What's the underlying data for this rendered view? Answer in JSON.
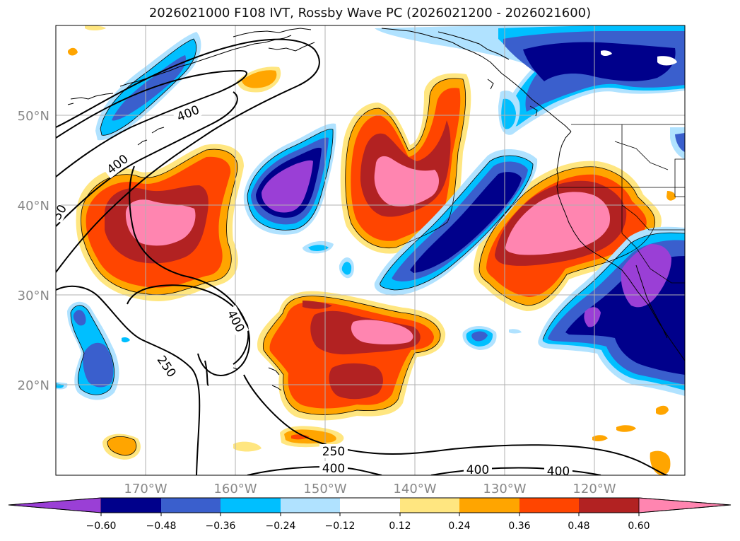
{
  "title": "2026021000 F108 IVT, Rossby Wave PC (2026021200 - 2026021600)",
  "lon_ticks": [
    "170°W",
    "160°W",
    "150°W",
    "140°W",
    "130°W",
    "120°W"
  ],
  "lat_ticks": [
    "50°N",
    "40°N",
    "30°N",
    "20°N"
  ],
  "colorbar": {
    "labels": [
      "−0.60",
      "−0.48",
      "−0.36",
      "−0.24",
      "−0.12",
      "0.12",
      "0.24",
      "0.36",
      "0.48",
      "0.60"
    ],
    "colors": [
      "#9a3fd6",
      "#00008b",
      "#3a5fcd",
      "#00bfff",
      "#b0e2ff",
      "#ffffff",
      "#ffe680",
      "#ffa500",
      "#ff4500",
      "#b22222",
      "#ff85b0"
    ]
  },
  "contour_labels": [
    "400",
    "400",
    "400",
    "250",
    "250",
    "400",
    "400",
    "400",
    "50"
  ],
  "colors": {
    "coast": "#000000",
    "grid": "#b0b0b0"
  }
}
